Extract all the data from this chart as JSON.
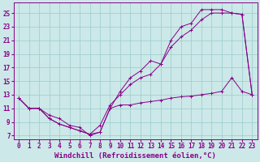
{
  "background_color": "#cce8e8",
  "line_color": "#880088",
  "grid_color": "#99cccc",
  "xlabel": "Windchill (Refroidissement éolien,°C)",
  "xlabel_fontsize": 6.5,
  "tick_fontsize": 5.5,
  "ylim": [
    6.5,
    26.5
  ],
  "xlim": [
    -0.5,
    23.5
  ],
  "yticks": [
    7,
    9,
    11,
    13,
    15,
    17,
    19,
    21,
    23,
    25
  ],
  "xticks": [
    0,
    1,
    2,
    3,
    4,
    5,
    6,
    7,
    8,
    9,
    10,
    11,
    12,
    13,
    14,
    15,
    16,
    17,
    18,
    19,
    20,
    21,
    22,
    23
  ],
  "line1_x": [
    0,
    1,
    2,
    3,
    4,
    5,
    6,
    7,
    8,
    9,
    10,
    11,
    12,
    13,
    14,
    15,
    16,
    17,
    18,
    19,
    20,
    21,
    22,
    23
  ],
  "line1_y": [
    12.5,
    11.0,
    11.0,
    10.0,
    9.5,
    8.5,
    8.2,
    7.0,
    7.5,
    11.0,
    13.5,
    15.5,
    16.5,
    18.0,
    17.5,
    21.0,
    23.0,
    23.5,
    25.5,
    25.5,
    25.5,
    25.0,
    24.8,
    13.0
  ],
  "line2_x": [
    0,
    1,
    2,
    3,
    4,
    5,
    6,
    7,
    8,
    9,
    10,
    11,
    12,
    13,
    14,
    15,
    16,
    17,
    18,
    19,
    20,
    21,
    22,
    23
  ],
  "line2_y": [
    12.5,
    11.0,
    11.0,
    9.5,
    8.7,
    8.2,
    7.7,
    7.2,
    8.5,
    11.5,
    13.0,
    14.5,
    15.5,
    16.0,
    17.5,
    20.0,
    21.5,
    22.5,
    24.0,
    25.0,
    25.0,
    25.0,
    24.8,
    13.0
  ],
  "line3_x": [
    0,
    1,
    2,
    3,
    4,
    5,
    6,
    7,
    8,
    9,
    10,
    11,
    12,
    13,
    14,
    15,
    16,
    17,
    18,
    19,
    20,
    21,
    22,
    23
  ],
  "line3_y": [
    12.5,
    11.0,
    11.0,
    9.5,
    8.7,
    8.2,
    7.7,
    7.2,
    7.5,
    11.0,
    11.5,
    11.5,
    11.8,
    12.0,
    12.2,
    12.5,
    12.7,
    12.8,
    13.0,
    13.2,
    13.5,
    15.5,
    13.5,
    13.0
  ],
  "figwidth": 3.2,
  "figheight": 2.0,
  "dpi": 100
}
